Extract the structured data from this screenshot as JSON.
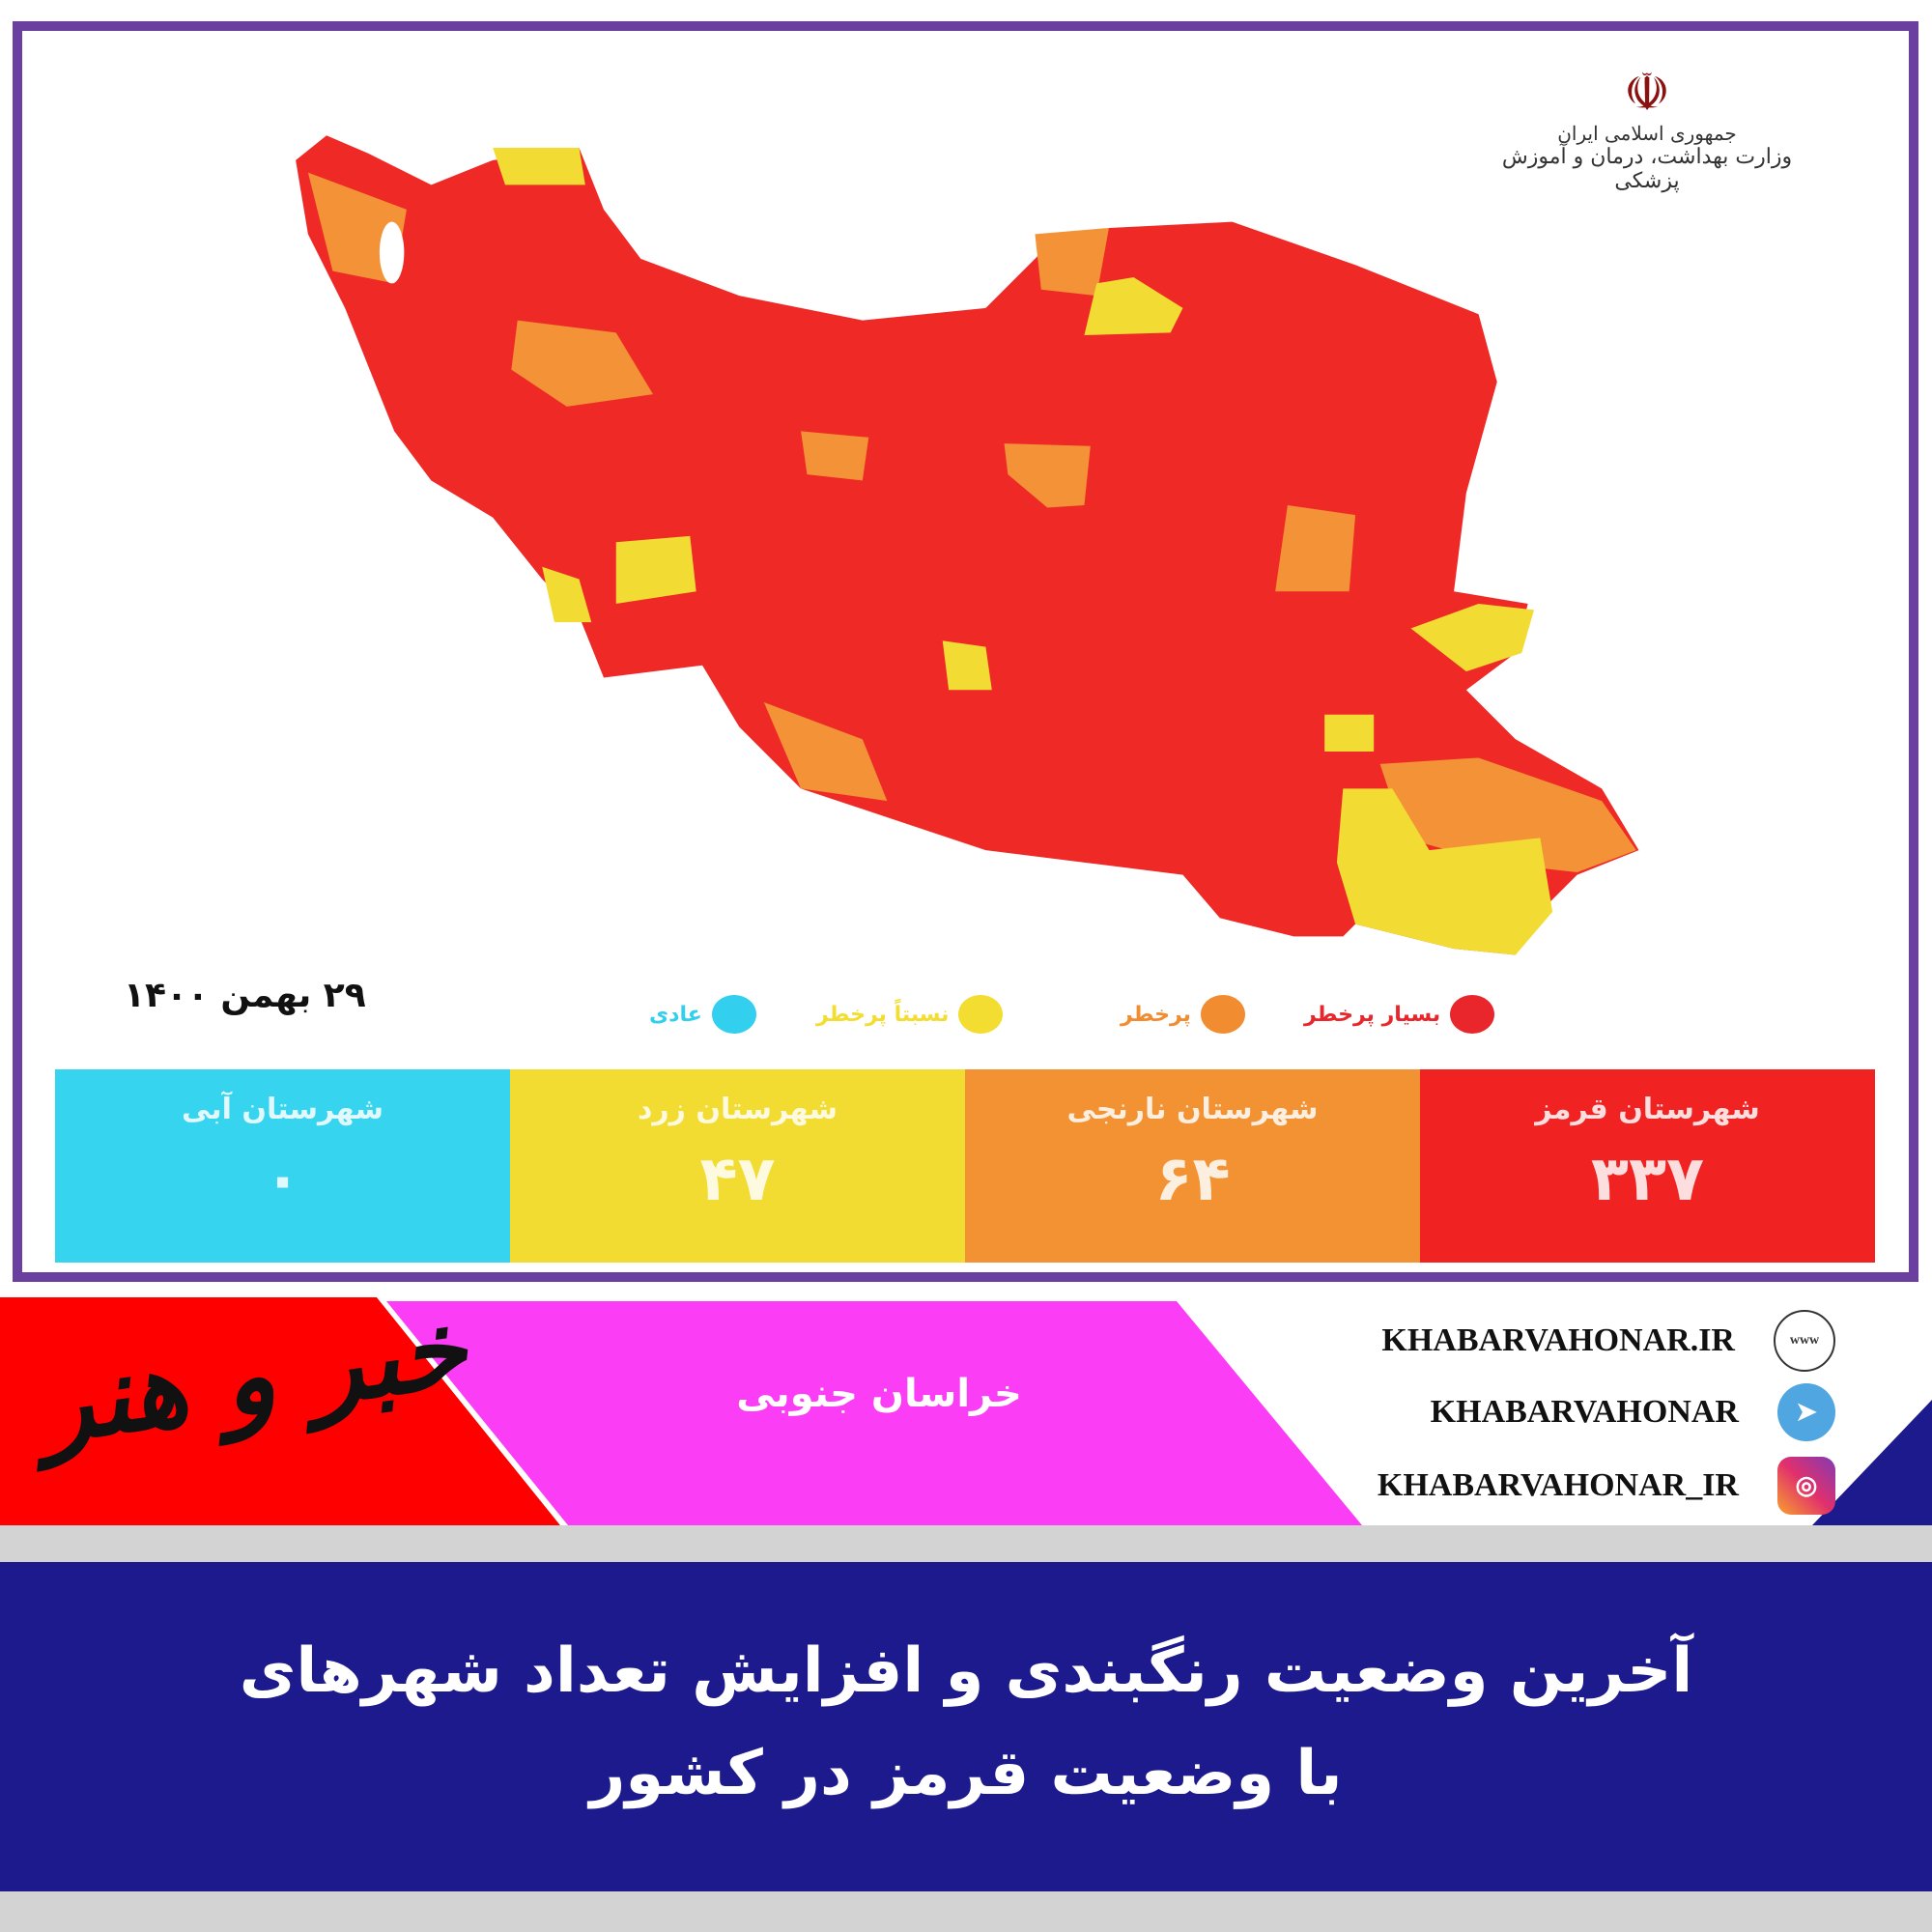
{
  "ministry_logo": {
    "line1": "جمهوری اسلامی ایران",
    "line2": "وزارت بهداشت، درمان و آموزش پزشکی"
  },
  "map_date": "۲۹ بهمن ۱۴۰۰",
  "legend": [
    {
      "label": "بسیار پرخطر",
      "color": "#e8262b"
    },
    {
      "label": "پرخطر",
      "color": "#f28c30"
    },
    {
      "label": "نسبتاً پرخطر",
      "color": "#f2dd30"
    },
    {
      "label": "عادی",
      "color": "#33cfee"
    }
  ],
  "counts": [
    {
      "label": "شهرستان قرمز",
      "value": "۳۳۷",
      "color": "#f02222"
    },
    {
      "label": "شهرستان نارنجی",
      "value": "۶۴",
      "color": "#f29233"
    },
    {
      "label": "شهرستان زرد",
      "value": "۴۷",
      "color": "#f2dc32"
    },
    {
      "label": "شهرستان آبی",
      "value": "۰",
      "color": "#36d4ef"
    }
  ],
  "banner": {
    "brand": "خبر و هنر",
    "region": "خراسان جنوبی",
    "website": "KHABARVAHONAR.IR",
    "telegram": "KHABARVAHONAR",
    "instagram": "KHABARVAHONAR_IR"
  },
  "headline": {
    "line1": "آخرین وضعیت رنگبندی و افزایش تعداد شهرهای",
    "line2": "با وضعیت قرمز در کشور"
  }
}
